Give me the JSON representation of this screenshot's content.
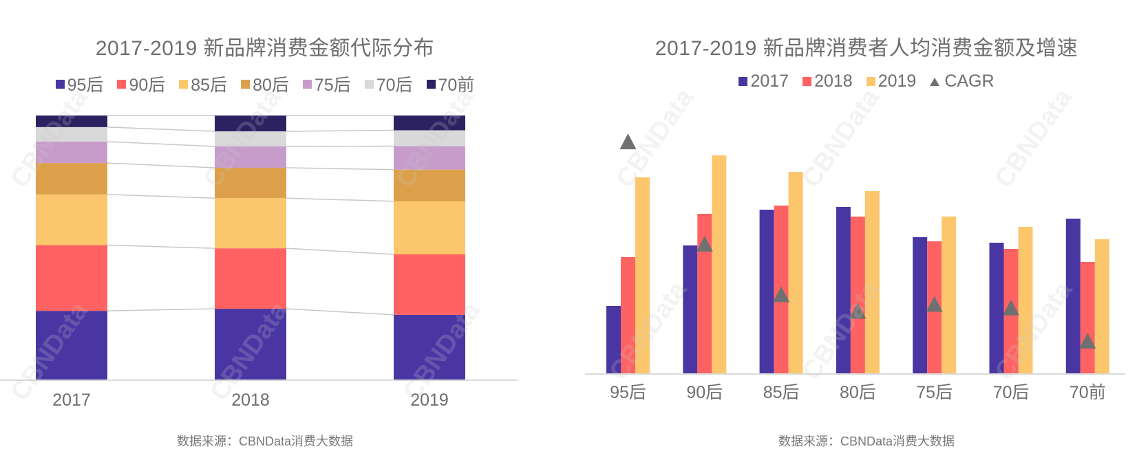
{
  "watermark": "CBNData",
  "colors": {
    "95后": "#4a36a3",
    "90后": "#ff6262",
    "85后": "#fcc76c",
    "80后": "#dca04a",
    "75后": "#c79ccb",
    "70后": "#d9d9d9",
    "70前": "#2c2262",
    "2017": "#4a36a3",
    "2018": "#ff6262",
    "2019": "#fcc76c",
    "CAGR": "#707070",
    "axis": "#d9d9d9",
    "connector": "#c8c8c8"
  },
  "chart_data": [
    {
      "type": "bar",
      "stacked": true,
      "normalized": true,
      "title": "2017-2019 新品牌消费金额代际分布",
      "xlabel": "",
      "ylabel": "",
      "categories": [
        "2017",
        "2018",
        "2019"
      ],
      "legend": [
        "95后",
        "90后",
        "85后",
        "80后",
        "75后",
        "70后",
        "70前"
      ],
      "legend_position": "top",
      "series": [
        {
          "name": "95后",
          "values": [
            26.0,
            26.8,
            24.5
          ]
        },
        {
          "name": "90后",
          "values": [
            24.9,
            22.9,
            22.9
          ]
        },
        {
          "name": "85后",
          "values": [
            19.2,
            19.0,
            20.1
          ]
        },
        {
          "name": "80后",
          "values": [
            11.9,
            11.5,
            12.0
          ]
        },
        {
          "name": "75后",
          "values": [
            8.1,
            8.1,
            8.9
          ]
        },
        {
          "name": "70后",
          "values": [
            5.5,
            5.7,
            6.0
          ]
        },
        {
          "name": "70前",
          "values": [
            4.4,
            6.0,
            5.6
          ]
        }
      ],
      "unit": "%",
      "ylim": [
        0,
        100
      ],
      "grid": false,
      "connector_lines": true,
      "source": "数据来源：CBNData消费大数据"
    },
    {
      "type": "bar",
      "title": "2017-2019 新品牌消费者人均消费金额及增速",
      "xlabel": "",
      "ylabel": "",
      "categories": [
        "95后",
        "90后",
        "85后",
        "80后",
        "75后",
        "70后",
        "70前"
      ],
      "legend": [
        "2017",
        "2018",
        "2019",
        "CAGR"
      ],
      "legend_position": "top",
      "series": [
        {
          "name": "2017",
          "values": [
            98,
            186,
            238,
            242,
            198,
            190,
            225
          ]
        },
        {
          "name": "2018",
          "values": [
            169,
            232,
            244,
            228,
            192,
            181,
            162
          ]
        },
        {
          "name": "2019",
          "values": [
            285,
            317,
            293,
            265,
            228,
            213,
            195
          ]
        }
      ],
      "series_unit": "relative index (no axis shown)",
      "ylim": [
        0,
        340
      ],
      "overlay": {
        "type": "scatter",
        "marker": "triangle",
        "name": "CAGR",
        "values": [
          70.0,
          30.5,
          11.0,
          4.6,
          7.3,
          5.9,
          -6.9
        ],
        "unit": "% (estimated, no axis shown)",
        "ylim": [
          -20,
          80
        ]
      },
      "grid": false,
      "source": "数据来源：CBNData消费大数据"
    }
  ]
}
